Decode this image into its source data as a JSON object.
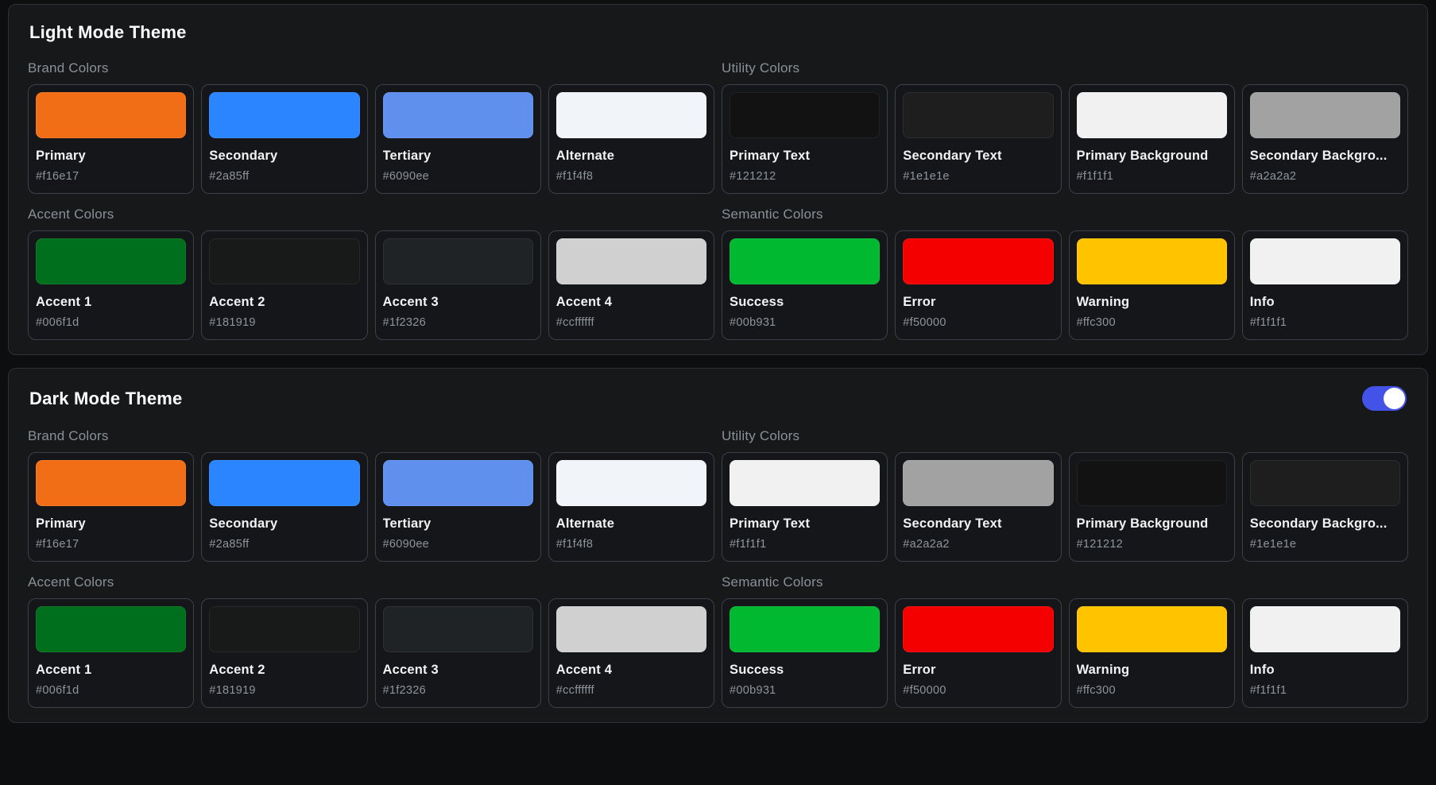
{
  "page": {
    "background": "#0d0e10",
    "panel_background": "#16181a",
    "accent_toggle_color": "#4353e8"
  },
  "sections": [
    {
      "title": "Light Mode Theme",
      "toggle": {
        "visible": false,
        "on": false
      },
      "rows": [
        {
          "groups": [
            {
              "label": "Brand Colors",
              "cards": [
                {
                  "name": "Primary",
                  "hex": "#f16e17"
                },
                {
                  "name": "Secondary",
                  "hex": "#2a85ff"
                },
                {
                  "name": "Tertiary",
                  "hex": "#6090ee"
                },
                {
                  "name": "Alternate",
                  "hex": "#f1f4f8"
                }
              ]
            },
            {
              "label": "Utility Colors",
              "cards": [
                {
                  "name": "Primary Text",
                  "hex": "#121212"
                },
                {
                  "name": "Secondary Text",
                  "hex": "#1e1e1e"
                },
                {
                  "name": "Primary Background",
                  "hex": "#f1f1f1"
                },
                {
                  "name": "Secondary Backgro...",
                  "hex": "#a2a2a2"
                }
              ]
            }
          ]
        },
        {
          "groups": [
            {
              "label": "Accent Colors",
              "cards": [
                {
                  "name": "Accent 1",
                  "hex": "#006f1d"
                },
                {
                  "name": "Accent 2",
                  "hex": "#181919"
                },
                {
                  "name": "Accent 3",
                  "hex": "#1f2326"
                },
                {
                  "name": "Accent 4",
                  "hex": "#ccffffff",
                  "swatch": "rgba(255,255,255,0.8)"
                }
              ]
            },
            {
              "label": "Semantic Colors",
              "cards": [
                {
                  "name": "Success",
                  "hex": "#00b931"
                },
                {
                  "name": "Error",
                  "hex": "#f50000"
                },
                {
                  "name": "Warning",
                  "hex": "#ffc300"
                },
                {
                  "name": "Info",
                  "hex": "#f1f1f1"
                }
              ]
            }
          ]
        }
      ]
    },
    {
      "title": "Dark Mode Theme",
      "toggle": {
        "visible": true,
        "on": true
      },
      "rows": [
        {
          "groups": [
            {
              "label": "Brand Colors",
              "cards": [
                {
                  "name": "Primary",
                  "hex": "#f16e17"
                },
                {
                  "name": "Secondary",
                  "hex": "#2a85ff"
                },
                {
                  "name": "Tertiary",
                  "hex": "#6090ee"
                },
                {
                  "name": "Alternate",
                  "hex": "#f1f4f8"
                }
              ]
            },
            {
              "label": "Utility Colors",
              "cards": [
                {
                  "name": "Primary Text",
                  "hex": "#f1f1f1"
                },
                {
                  "name": "Secondary Text",
                  "hex": "#a2a2a2"
                },
                {
                  "name": "Primary Background",
                  "hex": "#121212"
                },
                {
                  "name": "Secondary Backgro...",
                  "hex": "#1e1e1e"
                }
              ]
            }
          ]
        },
        {
          "groups": [
            {
              "label": "Accent Colors",
              "cards": [
                {
                  "name": "Accent 1",
                  "hex": "#006f1d"
                },
                {
                  "name": "Accent 2",
                  "hex": "#181919"
                },
                {
                  "name": "Accent 3",
                  "hex": "#1f2326"
                },
                {
                  "name": "Accent 4",
                  "hex": "#ccffffff",
                  "swatch": "rgba(255,255,255,0.8)"
                }
              ]
            },
            {
              "label": "Semantic Colors",
              "cards": [
                {
                  "name": "Success",
                  "hex": "#00b931"
                },
                {
                  "name": "Error",
                  "hex": "#f50000"
                },
                {
                  "name": "Warning",
                  "hex": "#ffc300"
                },
                {
                  "name": "Info",
                  "hex": "#f1f1f1"
                }
              ]
            }
          ]
        }
      ]
    }
  ]
}
